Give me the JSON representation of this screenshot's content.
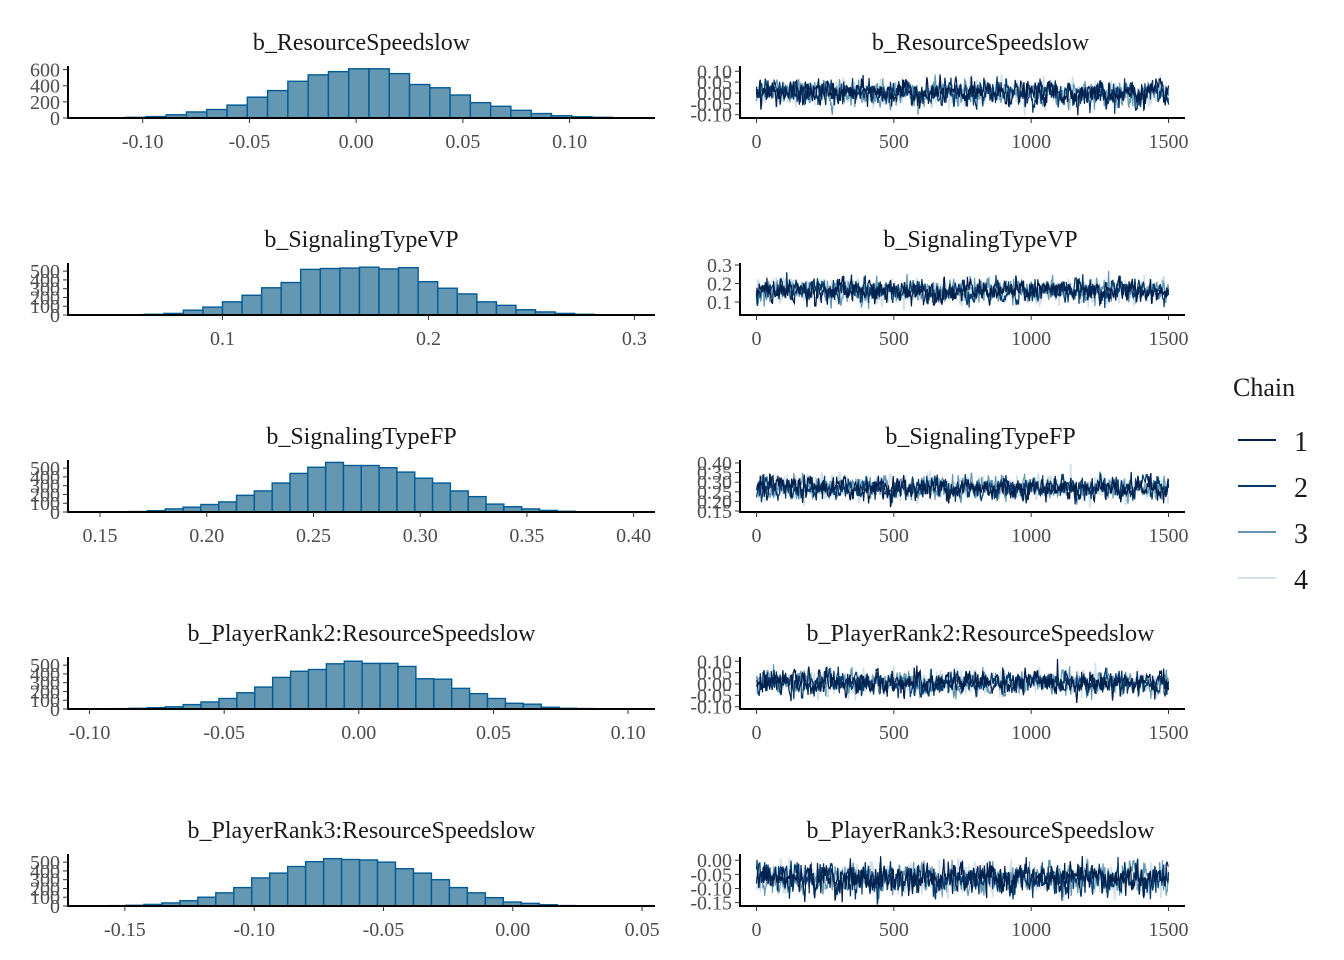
{
  "chart_data": [
    {
      "type": "bar",
      "subtype": "histogram",
      "title": "b_ResourceSpeedslow",
      "xlim": [
        -0.135,
        0.14
      ],
      "ylim": [
        0,
        620
      ],
      "xticks": [
        -0.1,
        -0.05,
        0.0,
        0.05,
        0.1
      ],
      "xtick_labels": [
        "-0.10",
        "-0.05",
        "0.00",
        "0.05",
        "0.10"
      ],
      "yticks": [
        0,
        200,
        400,
        600
      ],
      "ytick_labels": [
        "0",
        "200",
        "400",
        "600"
      ],
      "bin_start": -0.1175,
      "bin_width": 0.0095,
      "counts": [
        2,
        8,
        18,
        40,
        75,
        105,
        160,
        258,
        340,
        455,
        535,
        575,
        610,
        610,
        550,
        415,
        375,
        285,
        190,
        145,
        95,
        55,
        28,
        15,
        8,
        3,
        1
      ]
    },
    {
      "type": "line",
      "subtype": "trace",
      "title": "b_ResourceSpeedslow",
      "xlim": [
        -60,
        1560
      ],
      "ylim": [
        -0.115,
        0.115
      ],
      "xticks": [
        0,
        500,
        1000,
        1500
      ],
      "xtick_labels": [
        "0",
        "500",
        "1000",
        "1500"
      ],
      "yticks": [
        -0.1,
        -0.05,
        0.0,
        0.05,
        0.1
      ],
      "ytick_labels": [
        "-0.10",
        "-0.05",
        "0.00",
        "0.05",
        "0.10"
      ],
      "iterations": 1500,
      "center": 0.0,
      "spread": 0.033
    },
    {
      "type": "bar",
      "subtype": "histogram",
      "title": "b_SignalingTypeVP",
      "xlim": [
        0.025,
        0.31
      ],
      "ylim": [
        0,
        570
      ],
      "xticks": [
        0.1,
        0.2,
        0.3
      ],
      "xtick_labels": [
        "0.1",
        "0.2",
        "0.3"
      ],
      "yticks": [
        0,
        100,
        200,
        300,
        400,
        500
      ],
      "ytick_labels": [
        "0",
        "100",
        "200",
        "300",
        "400",
        "500"
      ],
      "bin_start": 0.0525,
      "bin_width": 0.0095,
      "counts": [
        3,
        8,
        18,
        55,
        90,
        150,
        225,
        310,
        370,
        520,
        530,
        535,
        545,
        525,
        540,
        380,
        305,
        240,
        150,
        110,
        60,
        35,
        18,
        8,
        3,
        1
      ]
    },
    {
      "type": "line",
      "subtype": "trace",
      "title": "b_SignalingTypeVP",
      "xlim": [
        -60,
        1560
      ],
      "ylim": [
        0.03,
        0.3
      ],
      "xticks": [
        0,
        500,
        1000,
        1500
      ],
      "xtick_labels": [
        "0",
        "500",
        "1000",
        "1500"
      ],
      "yticks": [
        0.1,
        0.2,
        0.3
      ],
      "ytick_labels": [
        "0.1",
        "0.2",
        "0.3"
      ],
      "iterations": 1500,
      "center": 0.16,
      "spread": 0.037
    },
    {
      "type": "bar",
      "subtype": "histogram",
      "title": "b_SignalingTypeFP",
      "xlim": [
        0.135,
        0.41
      ],
      "ylim": [
        0,
        570
      ],
      "xticks": [
        0.15,
        0.2,
        0.25,
        0.3,
        0.35,
        0.4
      ],
      "xtick_labels": [
        "0.15",
        "0.20",
        "0.25",
        "0.30",
        "0.35",
        "0.40"
      ],
      "yticks": [
        0,
        100,
        200,
        300,
        400,
        500
      ],
      "ytick_labels": [
        "0",
        "100",
        "200",
        "300",
        "400",
        "500"
      ],
      "bin_start": 0.1555,
      "bin_width": 0.00835,
      "counts": [
        2,
        5,
        15,
        35,
        55,
        85,
        115,
        190,
        240,
        330,
        440,
        510,
        565,
        530,
        530,
        505,
        455,
        385,
        330,
        240,
        175,
        90,
        60,
        35,
        18,
        8,
        3
      ]
    },
    {
      "type": "line",
      "subtype": "trace",
      "title": "b_SignalingTypeFP",
      "xlim": [
        -60,
        1560
      ],
      "ylim": [
        0.145,
        0.405
      ],
      "xticks": [
        0,
        500,
        1000,
        1500
      ],
      "xtick_labels": [
        "0",
        "500",
        "1000",
        "1500"
      ],
      "yticks": [
        0.15,
        0.2,
        0.25,
        0.3,
        0.35,
        0.4
      ],
      "ytick_labels": [
        "0.15",
        "0.20",
        "0.25",
        "0.30",
        "0.35",
        "0.40"
      ],
      "iterations": 1500,
      "center": 0.27,
      "spread": 0.035
    },
    {
      "type": "bar",
      "subtype": "histogram",
      "title": "b_PlayerRank2:ResourceSpeedslow",
      "xlim": [
        -0.108,
        0.11
      ],
      "ylim": [
        0,
        570
      ],
      "xticks": [
        -0.1,
        -0.05,
        0.0,
        0.05,
        0.1
      ],
      "xtick_labels": [
        "-0.10",
        "-0.05",
        "0.00",
        "0.05",
        "0.10"
      ],
      "yticks": [
        0,
        100,
        200,
        300,
        400,
        500
      ],
      "ytick_labels": [
        "0",
        "100",
        "200",
        "300",
        "400",
        "500"
      ],
      "bin_start": -0.0985,
      "bin_width": 0.00665,
      "counts": [
        2,
        4,
        8,
        15,
        25,
        50,
        80,
        120,
        185,
        250,
        360,
        430,
        450,
        515,
        545,
        520,
        520,
        485,
        345,
        340,
        235,
        175,
        120,
        65,
        55,
        20,
        8,
        5,
        2
      ]
    },
    {
      "type": "line",
      "subtype": "trace",
      "title": "b_PlayerRank2:ResourceSpeedslow",
      "xlim": [
        -60,
        1560
      ],
      "ylim": [
        -0.11,
        0.11
      ],
      "xticks": [
        0,
        500,
        1000,
        1500
      ],
      "xtick_labels": [
        "0",
        "500",
        "1000",
        "1500"
      ],
      "yticks": [
        -0.1,
        -0.05,
        0.0,
        0.05,
        0.1
      ],
      "ytick_labels": [
        "-0.10",
        "-0.05",
        "0.00",
        "0.05",
        "0.10"
      ],
      "iterations": 1500,
      "center": 0.005,
      "spread": 0.03
    },
    {
      "type": "bar",
      "subtype": "histogram",
      "title": "b_PlayerRank3:ResourceSpeedslow",
      "xlim": [
        -0.172,
        0.055
      ],
      "ylim": [
        0,
        570
      ],
      "xticks": [
        -0.15,
        -0.1,
        -0.05,
        0.0,
        0.05
      ],
      "xtick_labels": [
        "-0.15",
        "-0.10",
        "-0.05",
        "0.00",
        "0.05"
      ],
      "yticks": [
        0,
        100,
        200,
        300,
        400,
        500
      ],
      "ytick_labels": [
        "0",
        "100",
        "200",
        "300",
        "400",
        "500"
      ],
      "bin_start": -0.1635,
      "bin_width": 0.00695,
      "counts": [
        2,
        4,
        8,
        18,
        35,
        60,
        100,
        150,
        210,
        320,
        375,
        450,
        505,
        540,
        530,
        525,
        500,
        425,
        375,
        300,
        210,
        150,
        95,
        45,
        30,
        15,
        5,
        3,
        2,
        1
      ]
    },
    {
      "type": "line",
      "subtype": "trace",
      "title": "b_PlayerRank3:ResourceSpeedslow",
      "xlim": [
        -60,
        1560
      ],
      "ylim": [
        -0.162,
        0.015
      ],
      "xticks": [
        0,
        500,
        1000,
        1500
      ],
      "xtick_labels": [
        "0",
        "500",
        "1000",
        "1500"
      ],
      "yticks": [
        -0.15,
        -0.1,
        -0.05,
        0.0
      ],
      "ytick_labels": [
        "-0.15",
        "-0.10",
        "-0.05",
        "0.00"
      ],
      "iterations": 1500,
      "center": -0.065,
      "spread": 0.032
    }
  ],
  "legend": {
    "title": "Chain",
    "placement": "right",
    "items": [
      {
        "label": "1",
        "color": "#011f4b"
      },
      {
        "label": "2",
        "color": "#03396c"
      },
      {
        "label": "3",
        "color": "#6497b1"
      },
      {
        "label": "4",
        "color": "#d1e1ec"
      }
    ]
  },
  "colors": {
    "hist_fill": "#6497b1",
    "hist_stroke": "#005b96",
    "axis": "#000000",
    "tick_text": "#4d4d4d",
    "title_text": "#1a1a1a"
  }
}
